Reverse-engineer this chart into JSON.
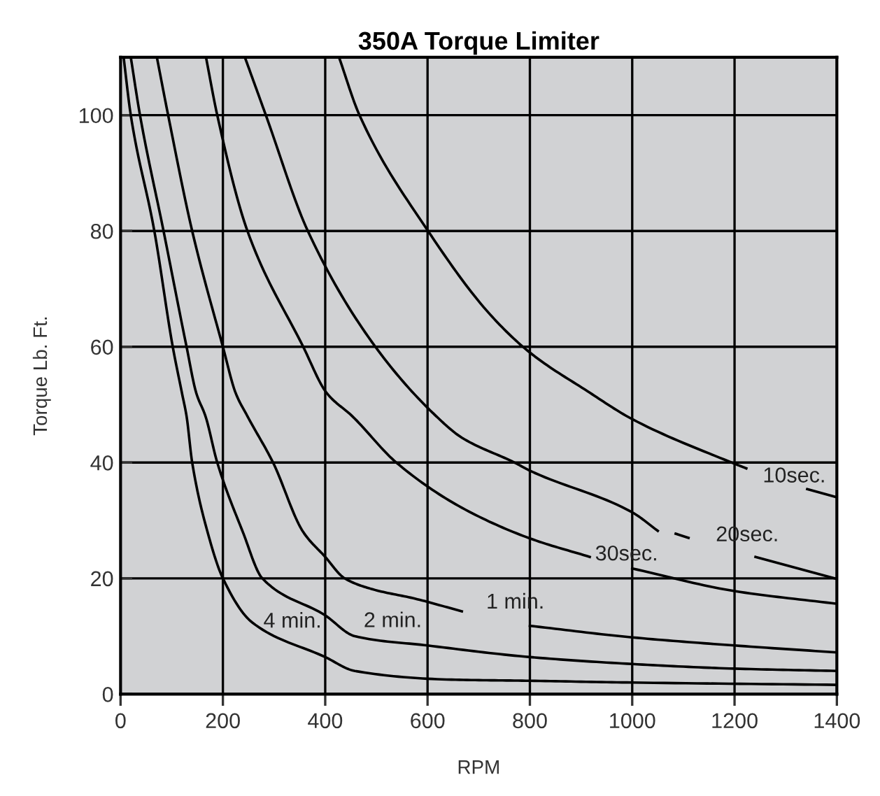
{
  "chart_data": {
    "type": "line",
    "title": "350A Torque Limiter",
    "xlabel": "RPM",
    "ylabel": "Torque Lb. Ft.",
    "xlim": [
      0,
      1400
    ],
    "xticks": [
      0,
      200,
      400,
      600,
      800,
      1000,
      1200,
      1400
    ],
    "ylim": [
      0,
      110
    ],
    "yticks": [
      0,
      20,
      40,
      60,
      80,
      100
    ],
    "grid": true,
    "marker": "none",
    "line_style": "solid",
    "series": [
      {
        "name": "4 min.",
        "color": "#000000",
        "x": [
          6,
          20,
          66,
          102,
          120,
          129,
          140,
          170,
          200,
          257,
          400,
          458,
          647,
          800,
          1000,
          1400
        ],
        "values": [
          110,
          100,
          80,
          60,
          52,
          48,
          40,
          28,
          20,
          12.4,
          6.4,
          4,
          2.5,
          2.3,
          2,
          1.6
        ]
      },
      {
        "name": "2 min.",
        "color": "#000000",
        "x": [
          20,
          38,
          84,
          129,
          148,
          166,
          189,
          239,
          277,
          400,
          458,
          600,
          800,
          1000,
          1200,
          1400
        ],
        "values": [
          110,
          100,
          80,
          60,
          52,
          48,
          40,
          28,
          20,
          13.6,
          10,
          8.4,
          6.4,
          5.2,
          4.4,
          4
        ]
      },
      {
        "name": "1 min.",
        "color": "#000000",
        "x": [
          71,
          93,
          140,
          200,
          225,
          248,
          298,
          357,
          400,
          438,
          493,
          575,
          667,
          735,
          800,
          1000,
          1200,
          1400
        ],
        "values": [
          110,
          100,
          80,
          60,
          52,
          48,
          40,
          28,
          23.7,
          20,
          18.1,
          16.5,
          14.3,
          null,
          11.8,
          9.8,
          8.4,
          7.2
        ]
      },
      {
        "name": "30sec.",
        "color": "#000000",
        "x": [
          167,
          189,
          248,
          357,
          403,
          453,
          539,
          667,
          800,
          917,
          960,
          1000,
          1200,
          1400
        ],
        "values": [
          110,
          100,
          80,
          60,
          52,
          48,
          40,
          32.2,
          26.9,
          23.7,
          null,
          21.7,
          17.8,
          15.6
        ]
      },
      {
        "name": "20sec.",
        "color": "#000000",
        "x": [
          243,
          284,
          366,
          498,
          617,
          667,
          770,
          800,
          1000,
          1050,
          1065,
          1085,
          1110,
          1150,
          1241,
          1400
        ],
        "values": [
          110,
          100,
          80,
          60,
          48,
          44.3,
          40,
          38.6,
          31.4,
          28.2,
          null,
          27.7,
          27,
          null,
          23.7,
          19.9
        ]
      },
      {
        "name": "10sec.",
        "color": "#000000",
        "x": [
          427,
          467,
          601,
          722,
          800,
          913,
          1000,
          1200,
          1223,
          1280,
          1342,
          1400
        ],
        "values": [
          110,
          100,
          80,
          65.6,
          59,
          52.3,
          47.5,
          39.8,
          39,
          null,
          35.4,
          34
        ]
      }
    ]
  }
}
